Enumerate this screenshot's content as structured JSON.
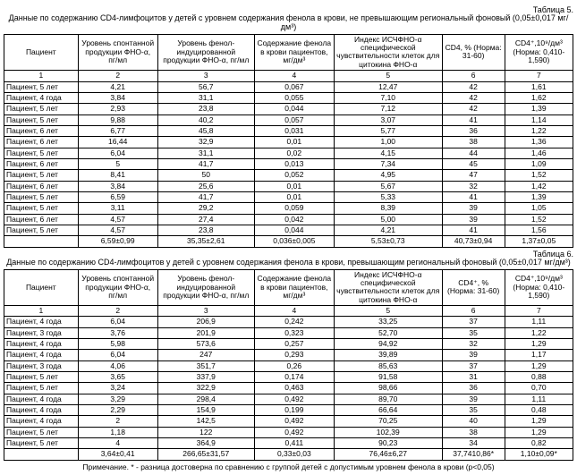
{
  "table5": {
    "label": "Таблица 5.",
    "title": "Данные по содержанию CD4-лимфоцитов у детей с уровнем содержания фенола в крови, не превышающим региональный фоновый (0,05±0,017 мг/дм³)",
    "headers": [
      "Пациент",
      "Уровень спонтанной продукции ФНО-α, пг/мл",
      "Уровень фенол-индуцированной продукции ФНО-α, пг/мл",
      "Содержание фенола в крови пациентов, мг/дм³",
      "Индекс ИСЧФНО-α специфической чувствительности клеток для цитокина ФНО-α",
      "CD4, % (Норма: 31-60)",
      "CD4⁺,10⁹/дм³ (Норма: 0,410-1,590)"
    ],
    "numrow": [
      "1",
      "2",
      "3",
      "4",
      "5",
      "6",
      "7"
    ],
    "rows": [
      [
        "Пациент, 5 лет",
        "4,21",
        "56,7",
        "0,067",
        "12,47",
        "42",
        "1,61"
      ],
      [
        "Пациент, 4 года",
        "3,84",
        "31,1",
        "0,055",
        "7,10",
        "42",
        "1,62"
      ],
      [
        "Пациент, 5 лет",
        "2,93",
        "23,8",
        "0,044",
        "7,12",
        "42",
        "1,39"
      ],
      [
        "Пациент, 5 лет",
        "9,88",
        "40,2",
        "0,057",
        "3,07",
        "41",
        "1,14"
      ],
      [
        "Пациент, 6 лет",
        "6,77",
        "45,8",
        "0,031",
        "5,77",
        "36",
        "1,22"
      ],
      [
        "Пациент, 6 лет",
        "16,44",
        "32,9",
        "0,01",
        "1,00",
        "38",
        "1,36"
      ],
      [
        "Пациент, 5 лет",
        "6,04",
        "31,1",
        "0,02",
        "4,15",
        "44",
        "1,46"
      ],
      [
        "Пациент, 6 лет",
        "5",
        "41,7",
        "0,013",
        "7,34",
        "45",
        "1,09"
      ],
      [
        "Пациент, 5 лет",
        "8,41",
        "50",
        "0,052",
        "4,95",
        "47",
        "1,52"
      ],
      [
        "Пациент, 6 лет",
        "3,84",
        "25,6",
        "0,01",
        "5,67",
        "32",
        "1,42"
      ],
      [
        "Пациент, 5 лет",
        "6,59",
        "41,7",
        "0,01",
        "5,33",
        "41",
        "1,39"
      ],
      [
        "Пациент, 5 лет",
        "3,11",
        "29,2",
        "0,059",
        "8,39",
        "39",
        "1,05"
      ],
      [
        "Пациент, 6 лет",
        "4,57",
        "27,4",
        "0,042",
        "5,00",
        "39",
        "1,52"
      ],
      [
        "Пациент, 5 лет",
        "4,57",
        "23,8",
        "0,044",
        "4,21",
        "41",
        "1,56"
      ],
      [
        "",
        "6,59±0,99",
        "35,35±2,61",
        "0,036±0,005",
        "5,53±0,73",
        "40,73±0,94",
        "1,37±0,05"
      ]
    ]
  },
  "table6": {
    "label": "Таблица 6.",
    "title": "Данные по содержанию CD4-лимфоцитов у детей с уровнем содержания фенола в крови, превышающим региональный фоновый (0,05±0,017 мг/дм³)",
    "headers": [
      "Пациент",
      "Уровень спонтанной продукции ФНО-α, пг/мл",
      "Уровень фенол-индуцированной продукции ФНО-α, пг/мл",
      "Содержание фенола в крови пациентов, мг/дм³",
      "Индекс ИСЧФНО-α специфической чувствительности клеток для цитокина ФНО-α",
      "CD4⁺, % (Норма: 31-60)",
      "CD4⁺,10⁹/дм³ (Норма: 0,410-1,590)"
    ],
    "numrow": [
      "1",
      "2",
      "3",
      "4",
      "5",
      "6",
      "7"
    ],
    "rows": [
      [
        "Пациент, 4 года",
        "6,04",
        "206,9",
        "0,242",
        "33,25",
        "37",
        "1,11"
      ],
      [
        "Пациент, 3 года",
        "3,76",
        "201,9",
        "0,323",
        "52,70",
        "35",
        "1,22"
      ],
      [
        "Пациент, 4 года",
        "5,98",
        "573,6",
        "0,257",
        "94,92",
        "32",
        "1,29"
      ],
      [
        "Пациент, 4 года",
        "6,04",
        "247",
        "0,293",
        "39,89",
        "39",
        "1,17"
      ],
      [
        "Пациент, 3 года",
        "4,06",
        "351,7",
        "0,26",
        "85,63",
        "37",
        "1,29"
      ],
      [
        "Пациент, 5 лет",
        "3,65",
        "337,9",
        "0,174",
        "91,58",
        "31",
        "0,88"
      ],
      [
        "Пациент, 5 лет",
        "3,24",
        "322,9",
        "0,463",
        "98,66",
        "36",
        "0,70"
      ],
      [
        "Пациент, 4 года",
        "3,29",
        "298,4",
        "0,492",
        "89,70",
        "39",
        "1,11"
      ],
      [
        "Пациент, 4 года",
        "2,29",
        "154,9",
        "0,199",
        "66,64",
        "35",
        "0,48"
      ],
      [
        "Пациент, 4 года",
        "2",
        "142,5",
        "0,492",
        "70,25",
        "40",
        "1,29"
      ],
      [
        "Пациент, 5 лет",
        "1,18",
        "122",
        "0,492",
        "102,39",
        "38",
        "1,29"
      ],
      [
        "Пациент, 5 лет",
        "4",
        "364,9",
        "0,411",
        "90,23",
        "34",
        "0,82"
      ],
      [
        "",
        "3,64±0,41",
        "266,65±31,57",
        "0,33±0,03",
        "76,46±6,27",
        "37,7410,86*",
        "1,10±0,09*"
      ]
    ]
  },
  "footnote": "Примечание. * - разница достоверна по сравнению с группой детей с допустимым уровнем фенола в крови (p<0,05)"
}
